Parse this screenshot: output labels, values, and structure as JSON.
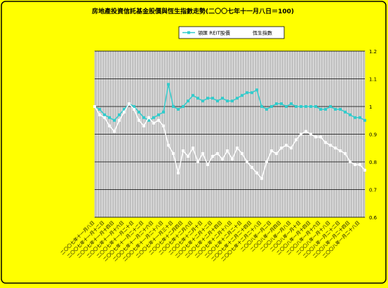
{
  "chart_data": {
    "type": "line",
    "title": "房地產投資信託基金股價與恆生指數走勢(二〇〇七年十一月八日＝100)",
    "categories": [
      "二〇〇七年十一月八日",
      null,
      "二〇〇七年十一月十二日",
      null,
      "二〇〇七年十一月十四日",
      null,
      "二〇〇七年十一月十六日",
      null,
      "二〇〇七年十一月二十日",
      null,
      "二〇〇七年十一月二十二日",
      null,
      "二〇〇七年十一月二十六日",
      null,
      "二〇〇七年十一月二十八日",
      null,
      "二〇〇七年十一月三十日",
      null,
      "二〇〇七年十二月四日",
      null,
      "二〇〇七年十二月六日",
      null,
      "二〇〇七年十二月十日",
      null,
      "二〇〇七年十二月十二日",
      null,
      "二〇〇七年十二月十四日",
      null,
      "二〇〇七年十二月十八日",
      null,
      "二〇〇七年十二月二十日",
      null,
      "二〇〇七年十二月二十四日",
      null,
      "二〇〇七年十二月二十八日",
      null,
      "二〇〇八年一月二日",
      null,
      "二〇〇八年一月四日",
      null,
      "二〇〇八年一月八日",
      null,
      "二〇〇八年一月十日",
      null,
      "二〇〇八年一月十四日",
      null,
      "二〇〇八年一月十六日",
      null,
      "二〇〇八年一月十八日",
      null,
      "二〇〇八年一月二十二日",
      null,
      "二〇〇八年一月二十四日",
      null,
      "二〇〇八年一月二十八日",
      null
    ],
    "series": [
      {
        "name": "領匯 REIT股價",
        "color": "#33cccc",
        "values": [
          1.0,
          0.99,
          0.97,
          0.96,
          0.95,
          0.97,
          0.99,
          1.01,
          1.0,
          0.98,
          0.96,
          0.95,
          0.96,
          0.97,
          0.98,
          1.08,
          1.0,
          0.99,
          1.0,
          1.02,
          1.04,
          1.03,
          1.02,
          1.03,
          1.03,
          1.02,
          1.03,
          1.02,
          1.02,
          1.03,
          1.04,
          1.05,
          1.05,
          1.06,
          1.0,
          0.99,
          1.0,
          1.01,
          1.01,
          1.0,
          1.01,
          1.0,
          1.0,
          1.0,
          1.0,
          1.0,
          0.99,
          0.99,
          1.0,
          0.99,
          0.99,
          0.98,
          0.97,
          0.96,
          0.96,
          0.95
        ]
      },
      {
        "name": "恆生指數",
        "color": "#ffffff",
        "values": [
          1.0,
          0.97,
          0.96,
          0.93,
          0.91,
          0.95,
          0.98,
          1.01,
          0.99,
          0.95,
          0.93,
          0.96,
          0.94,
          0.95,
          0.93,
          0.86,
          0.83,
          0.76,
          0.84,
          0.82,
          0.85,
          0.8,
          0.83,
          0.79,
          0.82,
          0.83,
          0.81,
          0.84,
          0.81,
          0.85,
          0.83,
          0.8,
          0.78,
          0.76,
          0.74,
          0.8,
          0.84,
          0.83,
          0.85,
          0.86,
          0.85,
          0.88,
          0.9,
          0.91,
          0.9,
          0.89,
          0.89,
          0.87,
          0.86,
          0.85,
          0.84,
          0.83,
          0.8,
          0.79,
          0.79,
          0.77
        ]
      }
    ],
    "ylim": [
      0.6,
      1.2
    ],
    "yticks": [
      0.6,
      0.7,
      0.8,
      0.9,
      1,
      1.1,
      1.2
    ],
    "grid": true,
    "legend": "top"
  }
}
